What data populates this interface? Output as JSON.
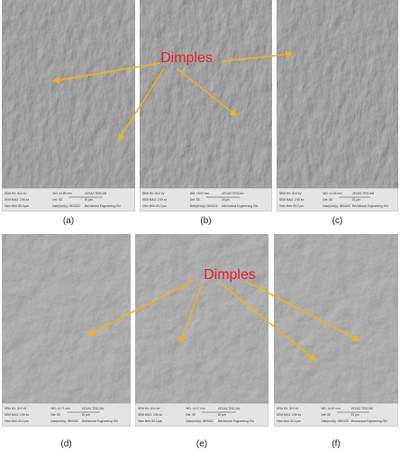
{
  "panels": [
    {
      "label": "(a)",
      "info": [
        [
          "SEM HV: 30.0 kV",
          "WD: 14.89 mm",
          "VEGA3 TESCAN"
        ],
        [
          "SEM MAG: 2.50 kx",
          "Det: SE",
          "20 µm"
        ],
        [
          "View field: 83.0 µm",
          "Date(m/d/y): 08/04/22",
          "Mechanical Engineering ISU"
        ]
      ]
    },
    {
      "label": "(b)",
      "info": [
        [
          "SEM HV: 30.0 kV",
          "WD: 15.03 mm",
          "VEGA3 TESCAN"
        ],
        [
          "SEM MAG: 2.50 kx",
          "Det: SE",
          "20 µm"
        ],
        [
          "View field: 83.0 µm",
          "Date(m/d/y): 08/04/22",
          "Mechanical Engineering ISU"
        ]
      ]
    },
    {
      "label": "(c)",
      "info": [
        [
          "SEM HV: 30.0 kV",
          "WD: 14.28 mm",
          "VEGA3 TESCAN"
        ],
        [
          "SEM MAG: 2.50 kx",
          "Det: SE",
          "20 µm"
        ],
        [
          "View field: 83.0 µm",
          "Date(m/d/y): 08/04/22",
          "Mechanical Engineering ISU"
        ]
      ]
    },
    {
      "label": "(d)",
      "info": [
        [
          "SEM HV: 30.0 kV",
          "WD: 14.71 mm",
          "VEGA3 TESCAN"
        ],
        [
          "SEM MAG: 2.50 kx",
          "Det: SE",
          "20 µm"
        ],
        [
          "View field: 83.0 µm",
          "Date(m/d/y): 08/04/22",
          "Mechanical Engineering ISU"
        ]
      ]
    },
    {
      "label": "(e)",
      "info": [
        [
          "SEM HV: 30.0 kV",
          "WD: 14.47 mm",
          "VEGA3 TESCAN"
        ],
        [
          "SEM MAG: 2.50 kx",
          "Det: SE",
          "20 µm"
        ],
        [
          "View field: 83.0 µm",
          "Date(m/d/y): 08/04/22",
          "Mechanical Engineering ISU"
        ]
      ]
    },
    {
      "label": "(f)",
      "info": [
        [
          "SEM HV: 30.0 kV",
          "WD: 14.67 mm",
          "VEGA3 TESCAN"
        ],
        [
          "SEM MAG: 2.50 kx",
          "Det: SE",
          "20 µm"
        ],
        [
          "View field: 83.0 µm",
          "Date(m/d/y): 08/04/22",
          "Mechanical Engineering ISU"
        ]
      ]
    }
  ],
  "annotations": [
    {
      "text": "Dimples"
    },
    {
      "text": "Dimples"
    }
  ]
}
